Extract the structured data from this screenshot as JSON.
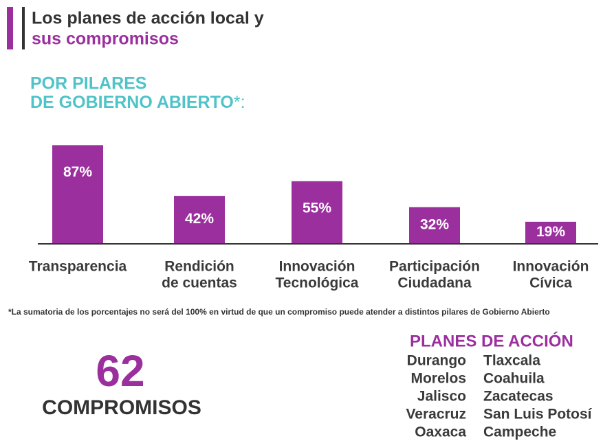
{
  "header": {
    "title": [
      "Los planes de acción local y",
      "sus compromisos"
    ],
    "subtitle": [
      "POR PILARES",
      "DE GOBIERNO ABIERTO",
      "*:"
    ]
  },
  "chart_data": {
    "type": "bar",
    "color": "#9b2f9e",
    "categories": [
      [
        "Transparencia"
      ],
      [
        "Rendición",
        "de cuentas"
      ],
      [
        "Innovación",
        "Tecnológica"
      ],
      [
        "Participación",
        "Ciudadana"
      ],
      [
        "Innovación",
        "Cívica"
      ]
    ],
    "values": [
      87,
      42,
      55,
      32,
      19
    ],
    "value_labels": [
      "87%",
      "42%",
      "55%",
      "32%",
      "19%"
    ]
  },
  "footnote": "*La sumatoria de los porcentajes no será del 100% en virtud de que un compromiso puede atender a distintos pilares de Gobierno Abierto",
  "total": {
    "number": "62",
    "label": "COMPROMISOS"
  },
  "plans": {
    "heading": "PLANES DE ACCIÓN",
    "left": [
      "Durango",
      "Morelos",
      "Jalisco",
      "Veracruz",
      "Oaxaca"
    ],
    "right": [
      "Tlaxcala",
      "Coahuila",
      "Zacatecas",
      "San Luis Potosí",
      "Campeche"
    ]
  }
}
